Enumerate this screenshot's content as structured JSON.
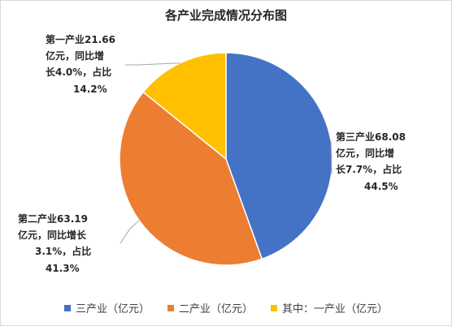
{
  "chart_data": {
    "type": "pie",
    "title": "各产业完成情况分布图",
    "categories": [
      "三产业（亿元）",
      "二产业（亿元）",
      "其中：一产业（亿元）"
    ],
    "values": [
      68.08,
      63.19,
      21.66
    ],
    "colors": [
      "#4472C4",
      "#ED7D31",
      "#FFC000"
    ],
    "legend_position": "bottom",
    "annotations": [
      [
        "第三产业68.08",
        "亿元，同比增",
        "长7.7%，占比",
        "44.5%"
      ],
      [
        "第二产业63.19",
        "亿元，同比增长",
        "3.1%，占比",
        "41.3%"
      ],
      [
        "第一产业21.66",
        "亿元，同比增",
        "长4.0%，占比",
        "14.2%"
      ]
    ]
  }
}
